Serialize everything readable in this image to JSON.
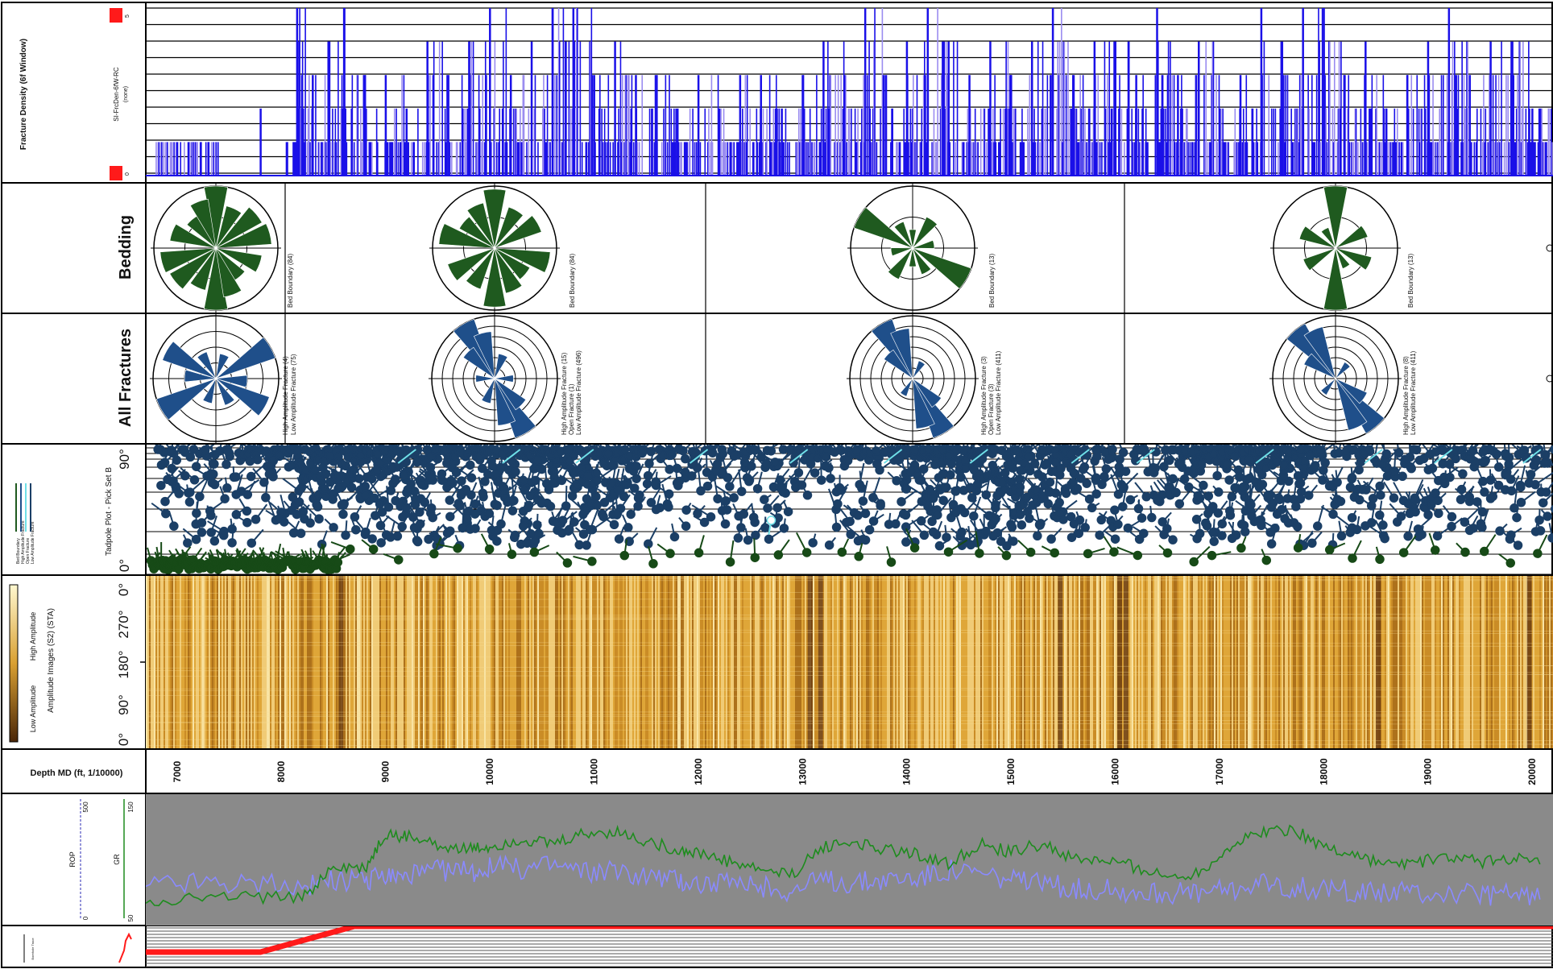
{
  "tracks": {
    "fracture_density": {
      "title": "Fracture Density (6f Window)",
      "curve": "SI-FrcDen-6fW-RC",
      "unit": "(none)",
      "scale_max": "5",
      "scale_min": "0"
    },
    "bedding": {
      "title": "Bedding"
    },
    "all_fractures": {
      "title": "All Fractures"
    },
    "tadpole": {
      "title": "Tadpole Plot - Pick Set B",
      "legend": [
        "Bed Boundary",
        "High Amplitude Fracture",
        "Open Fracture",
        "Low Amplitude Fracture"
      ],
      "scale_top": "90°",
      "scale_bottom": "0°"
    },
    "amplitude": {
      "title": "Amplitude Images (S2) (STA)",
      "high_label": "High Amplitude",
      "low_label": "Low Amplitude",
      "ticks": [
        "0°",
        "270°",
        "180°",
        "90°",
        "0°"
      ]
    },
    "depth": {
      "title": "Depth MD (ft, 1/10000)"
    },
    "logs": {
      "rop_label": "ROP",
      "rop_max": "500",
      "rop_min": "0",
      "gr_label": "GR",
      "gr_max": "150",
      "gr_min": "50"
    },
    "bottom": {
      "title": "Borehole Trace"
    }
  },
  "rose_annotations": [
    {
      "bedding": "Bed Boundary (84)",
      "fractures": [
        "High Amplitude Fracture (4)",
        "Low Amplitude Fracture (75)"
      ]
    },
    {
      "bedding": "Bed Boundary (84)",
      "fractures": [
        "High Amplitude Fracture (15)",
        "Open Fracture (1)",
        "Low Amplitude Fracture (496)"
      ]
    },
    {
      "bedding": "Bed Boundary (13)",
      "fractures": [
        "High Amplitude Fracture (3)",
        "Open Fracture (3)",
        "Low Amplitude Fracture (411)"
      ]
    },
    {
      "bedding": "Bed Boundary (13)",
      "fractures": [
        "High Amplitude Fracture (8)",
        "Low Amplitude Fracture (411)"
      ]
    }
  ],
  "colors": {
    "density_bar": "#1a10e8",
    "density_bar_light": "#9a8cf0",
    "bedding_rose": "#1f5a1f",
    "fracture_rose": "#1f4f8a",
    "tadpole_dark": "#1b3f66",
    "tadpole_green": "#174a17",
    "tadpole_cyan": "#6fe0e8",
    "amp_light": "#f5d27a",
    "amp_dark": "#6b3c10",
    "gr_curve": "#1e8c1e",
    "rop_curve": "#8a8aff",
    "log_bg": "#8a8a8a",
    "trace_red": "#ff1a1a"
  },
  "chart_data": {
    "type": "line",
    "title": "",
    "xlabel": "Depth MD (ft, 1/10000)",
    "depth_ticks": [
      "7000",
      "8000",
      "9000",
      "10000",
      "11000",
      "12000",
      "13000",
      "14000",
      "15000",
      "16000",
      "17000",
      "18000",
      "19000",
      "20000"
    ],
    "xlim": [
      6700,
      20200
    ],
    "tracks": [
      {
        "name": "SI-FrcDen-6fW-RC",
        "type": "bar",
        "ylim": [
          0,
          5
        ],
        "x": [
          7000,
          7300,
          7800,
          8050,
          8150,
          8300,
          8450,
          8600,
          8800,
          9000,
          9200,
          9400,
          9600,
          9800,
          10000,
          10200,
          10400,
          10600,
          10800,
          11000,
          11200,
          11400,
          11600,
          11800,
          12000,
          12200,
          12400,
          12600,
          12800,
          13000,
          13200,
          13400,
          13600,
          13800,
          14000,
          14200,
          14400,
          14600,
          14800,
          15000,
          15200,
          15400,
          15600,
          15800,
          16000,
          16200,
          16400,
          16600,
          16800,
          17000,
          17200,
          17400,
          17600,
          17800,
          18000,
          18200,
          18400,
          18600,
          18800,
          19000,
          19200,
          19400,
          19600,
          19800,
          20000
        ],
        "values": [
          1,
          1,
          2,
          1,
          5,
          3,
          4,
          5,
          3,
          3,
          2,
          4,
          3,
          4,
          5,
          3,
          4,
          5,
          5,
          3,
          4,
          3,
          3,
          2,
          3,
          2,
          3,
          3,
          2,
          3,
          4,
          3,
          5,
          3,
          4,
          5,
          4,
          3,
          4,
          3,
          4,
          5,
          3,
          4,
          4,
          3,
          5,
          3,
          4,
          2,
          3,
          5,
          4,
          5,
          5,
          3,
          4,
          2,
          3,
          4,
          5,
          3,
          4,
          4,
          2
        ]
      },
      {
        "name": "GR",
        "type": "line",
        "ylim": [
          50,
          150
        ],
        "x": [
          6700,
          7200,
          7700,
          8200,
          8500,
          8800,
          9000,
          9200,
          9500,
          9800,
          10000,
          10300,
          10600,
          10900,
          11200,
          11500,
          11800,
          12000,
          12300,
          12600,
          12900,
          13200,
          13500,
          13800,
          14100,
          14400,
          14700,
          15000,
          15300,
          15600,
          15900,
          16200,
          16500,
          16800,
          17100,
          17400,
          17700,
          18000,
          18300,
          18600,
          18900,
          19200,
          19500,
          19800,
          20100
        ],
        "values": [
          68,
          70,
          71,
          69,
          95,
          92,
          120,
          118,
          112,
          108,
          110,
          116,
          112,
          120,
          122,
          114,
          108,
          105,
          98,
          92,
          88,
          110,
          114,
          108,
          104,
          96,
          112,
          106,
          112,
          100,
          99,
          94,
          86,
          90,
          110,
          122,
          124,
          110,
          104,
          96,
          98,
          102,
          98,
          101,
          96
        ]
      },
      {
        "name": "ROP",
        "type": "line",
        "ylim": [
          0,
          500
        ],
        "x": [
          6700,
          7200,
          7700,
          8200,
          8500,
          8800,
          9000,
          9200,
          9500,
          9800,
          10000,
          10300,
          10600,
          10900,
          11200,
          11500,
          11800,
          12000,
          12300,
          12600,
          12900,
          13200,
          13500,
          13800,
          14100,
          14400,
          14700,
          15000,
          15300,
          15600,
          15900,
          16200,
          16500,
          16800,
          17100,
          17400,
          17700,
          18000,
          18300,
          18600,
          18900,
          19200,
          19500,
          19800,
          20100
        ],
        "values": [
          150,
          160,
          155,
          140,
          170,
          160,
          190,
          180,
          210,
          200,
          220,
          215,
          230,
          205,
          200,
          190,
          170,
          160,
          150,
          140,
          130,
          170,
          160,
          175,
          180,
          210,
          195,
          170,
          150,
          140,
          130,
          125,
          120,
          115,
          135,
          150,
          140,
          130,
          125,
          120,
          118,
          115,
          112,
          110,
          108
        ]
      }
    ],
    "grid": true,
    "legend": "left"
  }
}
